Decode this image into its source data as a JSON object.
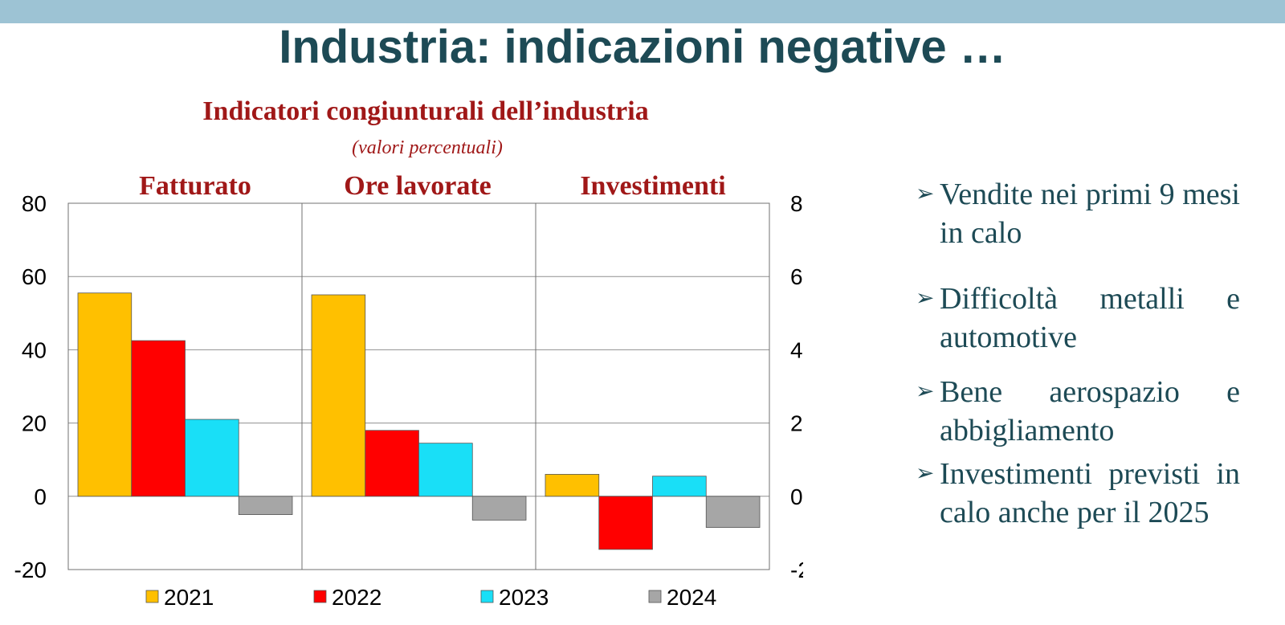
{
  "slide": {
    "title": "Industria: indicazioni negative …"
  },
  "colors": {
    "top_bar": "#9dc3d4",
    "title": "#1d4a55",
    "chart_titles": "#a01818",
    "bullets": "#1d4a55"
  },
  "chart_data": {
    "type": "bar",
    "title": "Indicatori congiunturali dell’industria",
    "subtitle": "(valori percentuali)",
    "panels": [
      "Fatturato",
      "Ore lavorate",
      "Investimenti"
    ],
    "series": [
      {
        "name": "2021",
        "color": "#ffc000",
        "values": [
          55.5,
          55,
          6
        ]
      },
      {
        "name": "2022",
        "color": "#ff0000",
        "values": [
          42.5,
          18,
          -14.5
        ]
      },
      {
        "name": "2023",
        "color": "#19dff7",
        "values": [
          21,
          14.5,
          5.5
        ]
      },
      {
        "name": "2024",
        "color": "#a6a6a6",
        "values": [
          -5,
          -6.5,
          -8.5
        ]
      }
    ],
    "ylim": [
      -20,
      80
    ],
    "yticks": [
      "80",
      "60",
      "40",
      "20",
      "0",
      "-20"
    ],
    "ytick_values": [
      80,
      60,
      40,
      20,
      0,
      -20
    ],
    "dual_y_axis": true,
    "grid": true,
    "legend_position": "bottom"
  },
  "bullets": [
    {
      "text": "Vendite nei primi 9 mesi in calo"
    },
    {
      "text": "Difficoltà metalli e automotive"
    },
    {
      "text": "Bene aerospazio e abbigliamento"
    },
    {
      "text": "Investimenti previsti in calo anche per il 2025"
    }
  ]
}
